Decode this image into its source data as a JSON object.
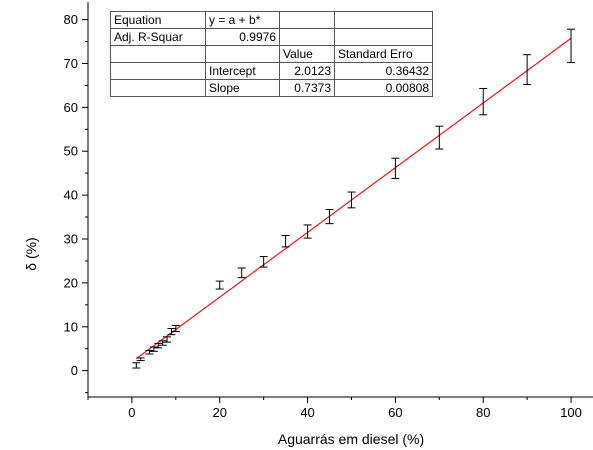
{
  "chart_data": {
    "type": "scatter",
    "xlabel": "Aguarrás em diesel (%)",
    "ylabel": "δ (%)",
    "xlim": [
      -10,
      105
    ],
    "ylim": [
      -6,
      84
    ],
    "xticks": [
      0,
      20,
      40,
      60,
      80,
      100
    ],
    "yticks": [
      0,
      10,
      20,
      30,
      40,
      50,
      60,
      70,
      80
    ],
    "grid": false,
    "points": [
      {
        "x": 1,
        "y": 1.2,
        "err": 0.6
      },
      {
        "x": 2,
        "y": 2.6,
        "err": 0.3
      },
      {
        "x": 4,
        "y": 4.2,
        "err": 0.4
      },
      {
        "x": 5,
        "y": 4.9,
        "err": 0.5
      },
      {
        "x": 6,
        "y": 5.7,
        "err": 0.5
      },
      {
        "x": 7,
        "y": 6.3,
        "err": 0.5
      },
      {
        "x": 8,
        "y": 7.1,
        "err": 0.6
      },
      {
        "x": 9,
        "y": 8.9,
        "err": 0.7
      },
      {
        "x": 10,
        "y": 9.6,
        "err": 0.7
      },
      {
        "x": 20,
        "y": 19.5,
        "err": 0.9
      },
      {
        "x": 25,
        "y": 22.3,
        "err": 1.1
      },
      {
        "x": 30,
        "y": 24.8,
        "err": 1.2
      },
      {
        "x": 35,
        "y": 29.5,
        "err": 1.3
      },
      {
        "x": 40,
        "y": 31.7,
        "err": 1.5
      },
      {
        "x": 45,
        "y": 35.1,
        "err": 1.6
      },
      {
        "x": 50,
        "y": 38.9,
        "err": 1.8
      },
      {
        "x": 60,
        "y": 46.1,
        "err": 2.3
      },
      {
        "x": 70,
        "y": 53.1,
        "err": 2.6
      },
      {
        "x": 80,
        "y": 61.3,
        "err": 3.0
      },
      {
        "x": 90,
        "y": 68.6,
        "err": 3.4
      },
      {
        "x": 100,
        "y": 74.0,
        "err": 3.8
      }
    ],
    "fit": {
      "intercept": 2.0123,
      "slope": 0.7373,
      "x_range": [
        1,
        100
      ],
      "color": "#e41a1c"
    }
  },
  "fit_table": {
    "rows": [
      [
        "Equation",
        "y = a + b*",
        "",
        ""
      ],
      [
        "Adj. R-Squar",
        "0.9976",
        "",
        ""
      ],
      [
        "",
        "",
        "Value",
        "Standard Erro"
      ],
      [
        "",
        "Intercept",
        "2.0123",
        "0.36432"
      ],
      [
        "",
        "Slope",
        "0.7373",
        "0.00808"
      ]
    ]
  }
}
